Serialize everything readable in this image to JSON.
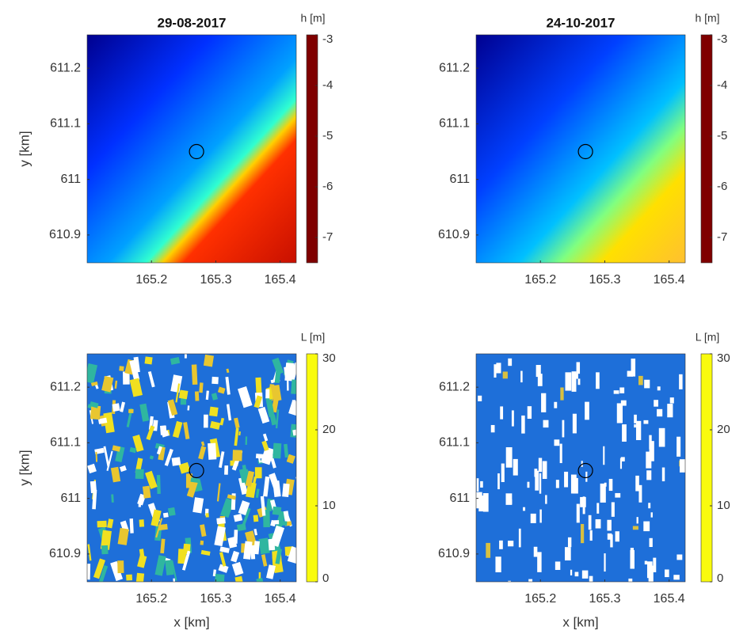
{
  "chart_data": [
    {
      "type": "heatmap",
      "title": "29-08-2017",
      "ylabel": "y [km]",
      "xlim": [
        165.1,
        165.425
      ],
      "ylim": [
        610.85,
        611.26
      ],
      "xticks": [
        165.2,
        165.3,
        165.4
      ],
      "yticks": [
        610.9,
        611,
        611.1,
        611.2
      ],
      "marker": {
        "x": 165.27,
        "y": 611.05
      },
      "colorbar": {
        "label": "h [m]",
        "colormap": "jet",
        "lim": [
          -7.5,
          -3
        ],
        "ticks": [
          -7,
          -6,
          -5,
          -4,
          -3
        ]
      }
    },
    {
      "type": "heatmap",
      "title": "24-10-2017",
      "xlim": [
        165.1,
        165.425
      ],
      "ylim": [
        610.85,
        611.26
      ],
      "xticks": [
        165.2,
        165.3,
        165.4
      ],
      "yticks": [
        610.9,
        611,
        611.1,
        611.2
      ],
      "marker": {
        "x": 165.27,
        "y": 611.05
      },
      "colorbar": {
        "label": "h [m]",
        "colormap": "jet",
        "lim": [
          -7.5,
          -3
        ],
        "ticks": [
          -7,
          -6,
          -5,
          -4,
          -3
        ]
      }
    },
    {
      "type": "heatmap",
      "xlabel": "x [km]",
      "ylabel": "y [km]",
      "xlim": [
        165.1,
        165.425
      ],
      "ylim": [
        610.85,
        611.26
      ],
      "xticks": [
        165.2,
        165.3,
        165.4
      ],
      "yticks": [
        610.9,
        611,
        611.1,
        611.2
      ],
      "marker": {
        "x": 165.27,
        "y": 611.05
      },
      "colorbar": {
        "label": "L [m]",
        "colormap": "parula",
        "lim": [
          0,
          30
        ],
        "ticks": [
          0,
          10,
          20,
          30
        ]
      }
    },
    {
      "type": "heatmap",
      "xlabel": "x [km]",
      "xlim": [
        165.1,
        165.425
      ],
      "ylim": [
        610.85,
        611.26
      ],
      "xticks": [
        165.2,
        165.3,
        165.4
      ],
      "yticks": [
        610.9,
        611,
        611.1,
        611.2
      ],
      "marker": {
        "x": 165.27,
        "y": 611.05
      },
      "colorbar": {
        "label": "L [m]",
        "colormap": "parula",
        "lim": [
          0,
          30
        ],
        "ticks": [
          0,
          10,
          20,
          30
        ]
      }
    }
  ]
}
